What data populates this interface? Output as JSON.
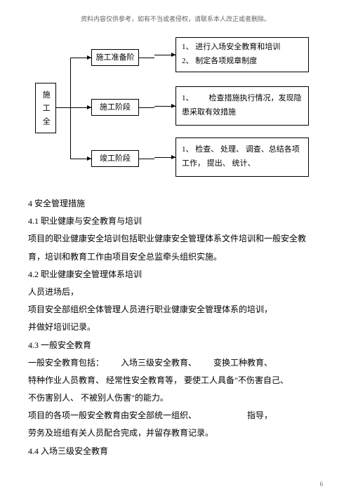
{
  "header_note": "资料内容仅供参考，如有不当或者侵权，请联系本人改正或者删除。",
  "diagram": {
    "root": "施工全",
    "stages": [
      {
        "label": "施工准备阶",
        "content": "1、 进行入场安全教育和培训\n2、 制定各项规章制度"
      },
      {
        "label": "施工阶段",
        "content": "1、  检查措施执行情况，发现隐患采取有效措施"
      },
      {
        "label": "竣工阶段",
        "content": "1、 检查、 处理、 调查、总结各项工作， 提出、 统计、"
      }
    ],
    "colors": {
      "border": "#000000",
      "bg": "#ffffff",
      "line": "#000000"
    }
  },
  "body": {
    "p1": "4 安全管理措施",
    "p2": "4.1 职业健康与安全教育与培训",
    "p3": "项目的职业健康安全培训包括职业健康安全管理体系文件培训和一般安全教",
    "p4": "育，培训和教育工作由项目安全总监牵头组织实施。",
    "p5": "4.2 职业健康安全管理体系培训",
    "p6": "人员进场后，",
    "p7": "项目安全部组织全体管理人员进行职业健康安全管理体系的培训，",
    "p8": "并做好培训记录。",
    "p9": "4.3 一般安全教育",
    "p10": "一般安全教育包括：  入场三级安全教育、  变换工种教育、",
    "p11": "特种作业人员教育、 经常性安全教育等， 要使工人具备\"不伤害自己、",
    "p12": "不伤害别人、 不被别人伤害\"的能力。",
    "p13": "项目的各项一般安全教育由安全部统一组织、      指导，",
    "p14": "劳务及班组有关人员配合完成，并留存教育记录。",
    "p15": "4.4 入场三级安全教育"
  },
  "page": "6"
}
